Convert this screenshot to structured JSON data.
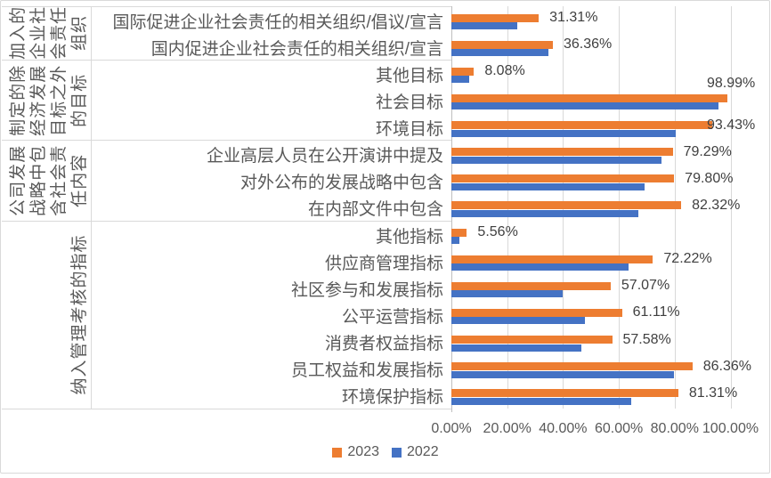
{
  "chart_data": {
    "type": "bar",
    "orientation": "horizontal",
    "title": "",
    "x_axis": {
      "min": 0,
      "max": 100,
      "grid": true,
      "ticks": [
        "0.00%",
        "20.00%",
        "40.00%",
        "60.00%",
        "80.00%",
        "100.00%"
      ]
    },
    "legend": {
      "position": "bottom",
      "entries": [
        "2023",
        "2022"
      ]
    },
    "groups": [
      {
        "label": "加入的企业社会责任组织",
        "label_lines": [
          "加入的",
          "企业社",
          "会责任",
          "组织"
        ],
        "span": 2
      },
      {
        "label": "制定的除经济发展目标之外的目标",
        "label_lines": [
          "制定的除",
          "经济发展",
          "目标之外",
          "的目标"
        ],
        "span": 3
      },
      {
        "label": "公司发展战略中包含社会责任内容",
        "label_lines": [
          "公司发展",
          "战略中包",
          "含社会责",
          "任内容"
        ],
        "span": 3
      },
      {
        "label": "纳入管理考核的指标",
        "label_lines": [
          "纳入管理考核的指标"
        ],
        "span": 7
      }
    ],
    "categories": [
      "国际促进企业社会责任的相关组织/倡议/宣言",
      "国内促进企业社会责任的相关组织/宣言",
      "其他目标",
      "社会目标",
      "环境目标",
      "企业高层人员在公开演讲中提及",
      "对外公布的发展战略中包含",
      "在内部文件中包含",
      "其他指标",
      "供应商管理指标",
      "社区参与和发展指标",
      "公平运营指标",
      "消费者权益指标",
      "员工权益和发展指标",
      "环境保护指标"
    ],
    "series": [
      {
        "name": "2023",
        "color": "#ED7D31",
        "values": [
          31.31,
          36.36,
          8.08,
          98.99,
          93.43,
          79.29,
          79.8,
          82.32,
          5.56,
          72.22,
          57.07,
          61.11,
          57.58,
          86.36,
          81.31
        ],
        "data_labels": [
          "31.31%",
          "36.36%",
          "8.08%",
          "98.99%",
          "93.43%",
          "79.29%",
          "79.80%",
          "82.32%",
          "5.56%",
          "72.22%",
          "57.07%",
          "61.11%",
          "57.58%",
          "86.36%",
          "81.31%"
        ]
      },
      {
        "name": "2022",
        "color": "#4472C4",
        "values": [
          23.6,
          34.8,
          6.5,
          95.6,
          80.5,
          75.3,
          69.2,
          67.1,
          2.9,
          63.4,
          39.9,
          47.8,
          46.5,
          79.8,
          64.4
        ],
        "data_labels": null
      }
    ],
    "colors": {
      "series_2023": "#ED7D31",
      "series_2022": "#4472C4",
      "gridline": "#D9D9D9",
      "axis_line": "#BFBFBF",
      "separator_line": "#D9D9D9",
      "axis_text": "#595959",
      "data_label_text": "#3F3F3F",
      "border": "#D9D9D9"
    }
  }
}
